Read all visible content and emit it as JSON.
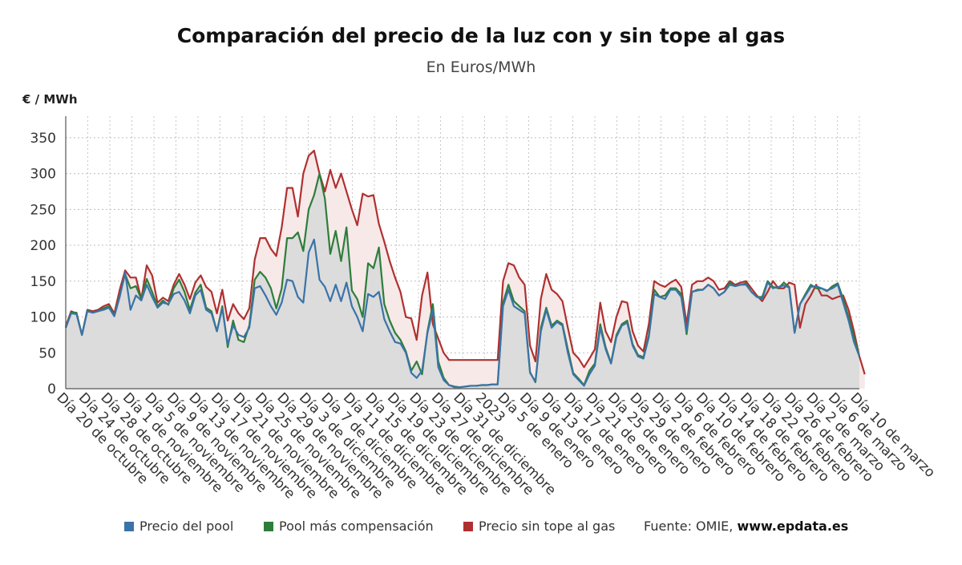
{
  "header": {
    "title": "Comparación del precio de la luz con y sin tope al gas",
    "subtitle": "En Euros/MWh"
  },
  "footer": {
    "source_prefix": "Fuente: OMIE, ",
    "source_site": "www.epdata.es"
  },
  "colors": {
    "pool": "#3a73a8",
    "compensation": "#2e7d3a",
    "no_cap": "#b03030"
  },
  "chart_data": {
    "type": "line",
    "title": "Comparación del precio de la luz con y sin tope al gas",
    "subtitle": "En Euros/MWh",
    "ylabel": "€ / MWh",
    "xlabel": "",
    "ylim": [
      0,
      380
    ],
    "yticks": [
      0,
      50,
      100,
      150,
      200,
      250,
      300,
      350
    ],
    "grid": true,
    "legend_position": "bottom",
    "x_tick_labels": [
      "Día 20 de octubre",
      "Día 24 de octubre",
      "Día 28 de octubre",
      "Día 1 de noviembre",
      "Día 5 de noviembre",
      "Día 9 de noviembre",
      "Día 13 de noviembre",
      "Día 17 de noviembre",
      "Día 21 de noviembre",
      "Día 25 de noviembre",
      "Día 29 de noviembre",
      "Día 3 de diciembre",
      "Día 7 de diciembre",
      "Día 11 de diciembre",
      "Día 15 de diciembre",
      "Día 19 de diciembre",
      "Día 23 de diciembre",
      "Día 27 de diciembre",
      "Día 31 de diciembre",
      "2023",
      "Día 5 de enero",
      "Día 9 de enero",
      "Día 13 de enero",
      "Día 17 de enero",
      "Día 21 de enero",
      "Día 25 de enero",
      "Día 29 de enero",
      "Día 2 de febrero",
      "Día 6 de febrero",
      "Día 10 de febrero",
      "Día 14 de febrero",
      "Día 18 de febrero",
      "Día 22 de febrero",
      "Día 26 de febrero",
      "Día 2 de marzo",
      "Día 6 de marzo",
      "Día 10 de marzo"
    ],
    "series": [
      {
        "name": "Precio del pool",
        "color": "#3a73a8",
        "values": [
          85,
          105,
          104,
          75,
          108,
          106,
          108,
          110,
          113,
          101,
          128,
          162,
          110,
          130,
          123,
          145,
          128,
          113,
          120,
          118,
          132,
          135,
          123,
          105,
          130,
          138,
          110,
          105,
          80,
          112,
          62,
          88,
          75,
          72,
          85,
          140,
          143,
          130,
          115,
          103,
          120,
          152,
          150,
          128,
          120,
          190,
          208,
          152,
          142,
          122,
          145,
          122,
          148,
          115,
          100,
          80,
          132,
          128,
          135,
          97,
          80,
          65,
          63,
          50,
          22,
          15,
          25,
          78,
          110,
          30,
          12,
          5,
          2,
          2,
          3,
          4,
          4,
          5,
          5,
          6,
          6,
          115,
          138,
          115,
          110,
          105,
          22,
          10,
          80,
          110,
          85,
          93,
          88,
          50,
          20,
          12,
          4,
          20,
          32,
          85,
          55,
          35,
          72,
          88,
          92,
          60,
          45,
          42,
          72,
          132,
          128,
          125,
          138,
          138,
          128,
          80,
          135,
          137,
          138,
          145,
          140,
          130,
          135,
          145,
          143,
          145,
          145,
          135,
          128,
          125,
          148,
          140,
          142,
          144,
          141,
          78,
          118,
          130,
          142,
          143,
          140,
          137,
          140,
          145,
          120,
          95,
          65,
          45
        ],
        "fill": false
      },
      {
        "name": "Pool más compensación",
        "color": "#2e7d3a",
        "values": [
          85,
          106,
          106,
          75,
          109,
          106,
          108,
          112,
          115,
          102,
          130,
          160,
          140,
          143,
          125,
          153,
          135,
          115,
          123,
          117,
          140,
          152,
          135,
          110,
          134,
          145,
          113,
          108,
          80,
          115,
          58,
          95,
          68,
          65,
          88,
          152,
          163,
          155,
          140,
          112,
          140,
          210,
          210,
          218,
          192,
          250,
          270,
          300,
          265,
          188,
          220,
          178,
          225,
          137,
          125,
          100,
          175,
          168,
          197,
          118,
          95,
          78,
          68,
          52,
          25,
          38,
          20,
          80,
          118,
          38,
          15,
          5,
          3,
          2,
          3,
          4,
          4,
          5,
          5,
          6,
          6,
          120,
          145,
          122,
          115,
          108,
          23,
          9,
          85,
          113,
          88,
          95,
          90,
          55,
          22,
          14,
          5,
          25,
          35,
          90,
          58,
          36,
          75,
          90,
          95,
          62,
          47,
          44,
          75,
          138,
          128,
          130,
          140,
          140,
          132,
          76,
          135,
          138,
          138,
          145,
          140,
          130,
          135,
          148,
          143,
          145,
          147,
          135,
          128,
          128,
          150,
          142,
          140,
          148,
          142,
          78,
          118,
          132,
          145,
          140,
          140,
          136,
          143,
          147,
          125,
          100,
          72,
          45
        ],
        "fill": true
      },
      {
        "name": "Precio sin tope al gas",
        "color": "#b03030",
        "values": [
          87,
          108,
          105,
          75,
          110,
          108,
          110,
          115,
          118,
          105,
          138,
          165,
          155,
          155,
          125,
          172,
          158,
          120,
          127,
          122,
          145,
          160,
          145,
          125,
          148,
          158,
          142,
          135,
          105,
          138,
          95,
          118,
          105,
          97,
          112,
          180,
          210,
          210,
          195,
          185,
          225,
          280,
          280,
          240,
          300,
          325,
          332,
          300,
          275,
          305,
          280,
          300,
          275,
          250,
          228,
          272,
          268,
          270,
          230,
          205,
          178,
          155,
          135,
          100,
          98,
          68,
          130,
          162,
          90,
          70,
          50,
          40,
          40,
          40,
          40,
          40,
          40,
          40,
          40,
          40,
          40,
          150,
          175,
          172,
          155,
          145,
          60,
          38,
          125,
          160,
          138,
          132,
          122,
          85,
          50,
          42,
          30,
          42,
          55,
          120,
          80,
          65,
          100,
          122,
          120,
          80,
          60,
          52,
          90,
          150,
          145,
          142,
          148,
          152,
          142,
          90,
          145,
          150,
          150,
          155,
          150,
          138,
          140,
          150,
          145,
          148,
          150,
          140,
          130,
          122,
          135,
          150,
          140,
          140,
          148,
          145,
          85,
          118,
          130,
          145,
          130,
          130,
          125,
          128,
          130,
          110,
          80,
          45,
          20
        ],
        "fill": true
      }
    ]
  }
}
